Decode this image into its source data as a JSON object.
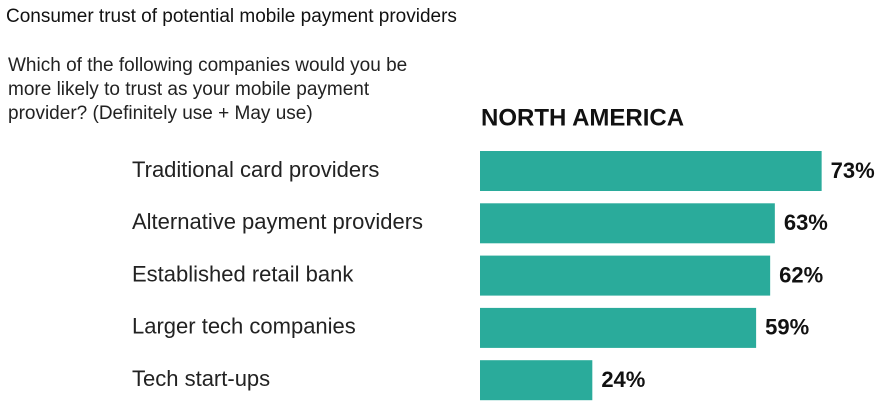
{
  "chart_data": {
    "type": "bar",
    "orientation": "horizontal",
    "title": "Consumer trust of potential mobile payment providers",
    "subtitle": "Which of the following companies would you be more likely to trust as your mobile payment provider? (Definitely use + May use)",
    "panel_title": "NORTH AMERICA",
    "categories": [
      "Traditional card providers",
      "Alternative payment providers",
      "Established retail bank",
      "Larger tech companies",
      "Tech start-ups"
    ],
    "values": [
      73,
      63,
      62,
      59,
      24
    ],
    "value_labels": [
      "73%",
      "63%",
      "62%",
      "59%",
      "24%"
    ],
    "color": "#2aab9b"
  }
}
